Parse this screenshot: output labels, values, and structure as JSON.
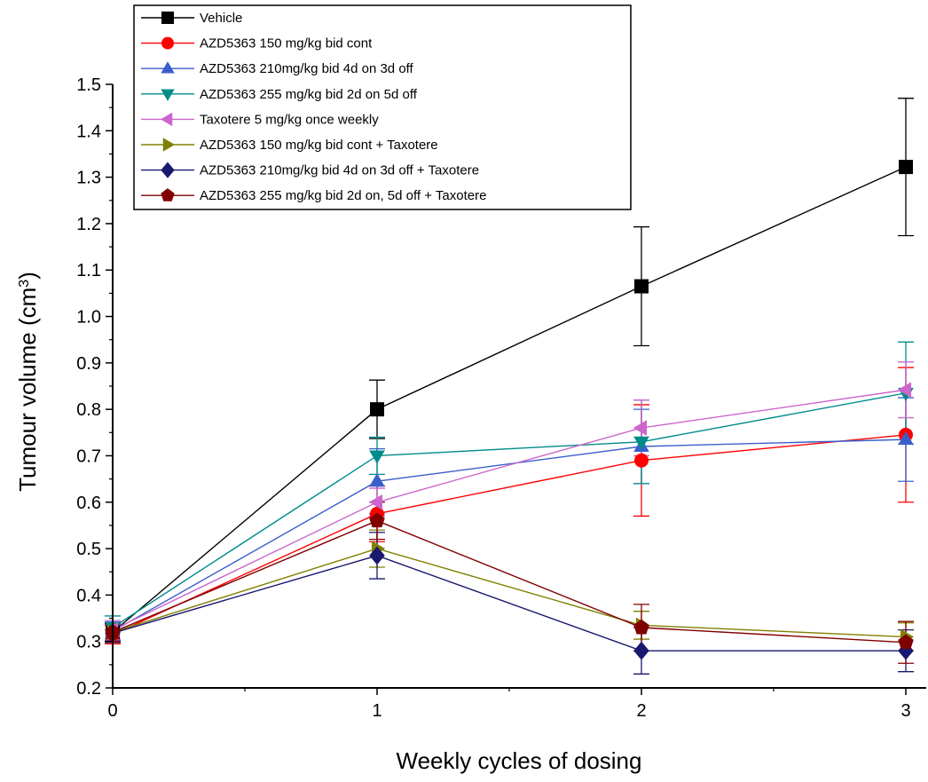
{
  "chart_data": {
    "type": "line",
    "xlabel": "Weekly cycles of dosing",
    "ylabel": "Tumour volume (cm",
    "ylabel_sup": "3",
    "ylabel_close": ")",
    "xlim": [
      0,
      3
    ],
    "ylim": [
      0.2,
      1.5
    ],
    "x_ticks": [
      0,
      1,
      2,
      3
    ],
    "x_tick_labels": [
      "0",
      "1",
      "2",
      "3"
    ],
    "y_ticks": [
      0.2,
      0.3,
      0.4,
      0.5,
      0.6,
      0.7,
      0.8,
      0.9,
      1.0,
      1.1,
      1.2,
      1.3,
      1.4,
      1.5
    ],
    "y_tick_labels": [
      "0.2",
      "0.3",
      "0.4",
      "0.5",
      "0.6",
      "0.7",
      "0.8",
      "0.9",
      "1.0",
      "1.1",
      "1.2",
      "1.3",
      "1.4",
      "1.5"
    ],
    "grid": false,
    "legend_position": "top-left",
    "x": [
      0,
      1,
      2,
      3
    ],
    "series": [
      {
        "name": "Vehicle",
        "color": "#000000",
        "marker": "square",
        "values": [
          0.32,
          0.8,
          1.065,
          1.322
        ],
        "errors": [
          0.02,
          0.063,
          0.128,
          0.148
        ]
      },
      {
        "name": "AZD5363  150 mg/kg bid cont",
        "color": "#ff0000",
        "marker": "circle",
        "values": [
          0.315,
          0.575,
          0.69,
          0.745
        ],
        "errors": [
          0.02,
          0.06,
          0.12,
          0.145
        ]
      },
      {
        "name": "AZD5363  210mg/kg bid 4d on 3d off",
        "color": "#3a5fcd",
        "marker": "triangle-up",
        "values": [
          0.322,
          0.645,
          0.72,
          0.735
        ],
        "errors": [
          0.02,
          0.07,
          0.08,
          0.09
        ]
      },
      {
        "name": "AZD5363  255 mg/kg bid 2d on 5d off",
        "color": "#008b8b",
        "marker": "triangle-down",
        "values": [
          0.33,
          0.7,
          0.73,
          0.835
        ],
        "errors": [
          0.025,
          0.04,
          0.09,
          0.11
        ]
      },
      {
        "name": "Taxotere  5 mg/kg once weekly",
        "color": "#cc66cc",
        "marker": "triangle-left",
        "values": [
          0.325,
          0.6,
          0.76,
          0.842
        ],
        "errors": [
          0.02,
          0.03,
          0.06,
          0.06
        ]
      },
      {
        "name": "AZD5363  150 mg/kg bid cont + Taxotere",
        "color": "#808000",
        "marker": "triangle-right",
        "values": [
          0.32,
          0.5,
          0.335,
          0.31
        ],
        "errors": [
          0.02,
          0.04,
          0.03,
          0.03
        ]
      },
      {
        "name": "AZD5363  210mg/kg bid 4d on 3d off + Taxotere",
        "color": "#191970",
        "marker": "diamond",
        "values": [
          0.318,
          0.485,
          0.28,
          0.28
        ],
        "errors": [
          0.02,
          0.05,
          0.05,
          0.045
        ]
      },
      {
        "name": "AZD5363 255 mg/kg bid 2d on, 5d off + Taxotere",
        "color": "#800000",
        "marker": "pentagon",
        "values": [
          0.32,
          0.56,
          0.33,
          0.298
        ],
        "errors": [
          0.02,
          0.04,
          0.05,
          0.045
        ]
      }
    ]
  }
}
